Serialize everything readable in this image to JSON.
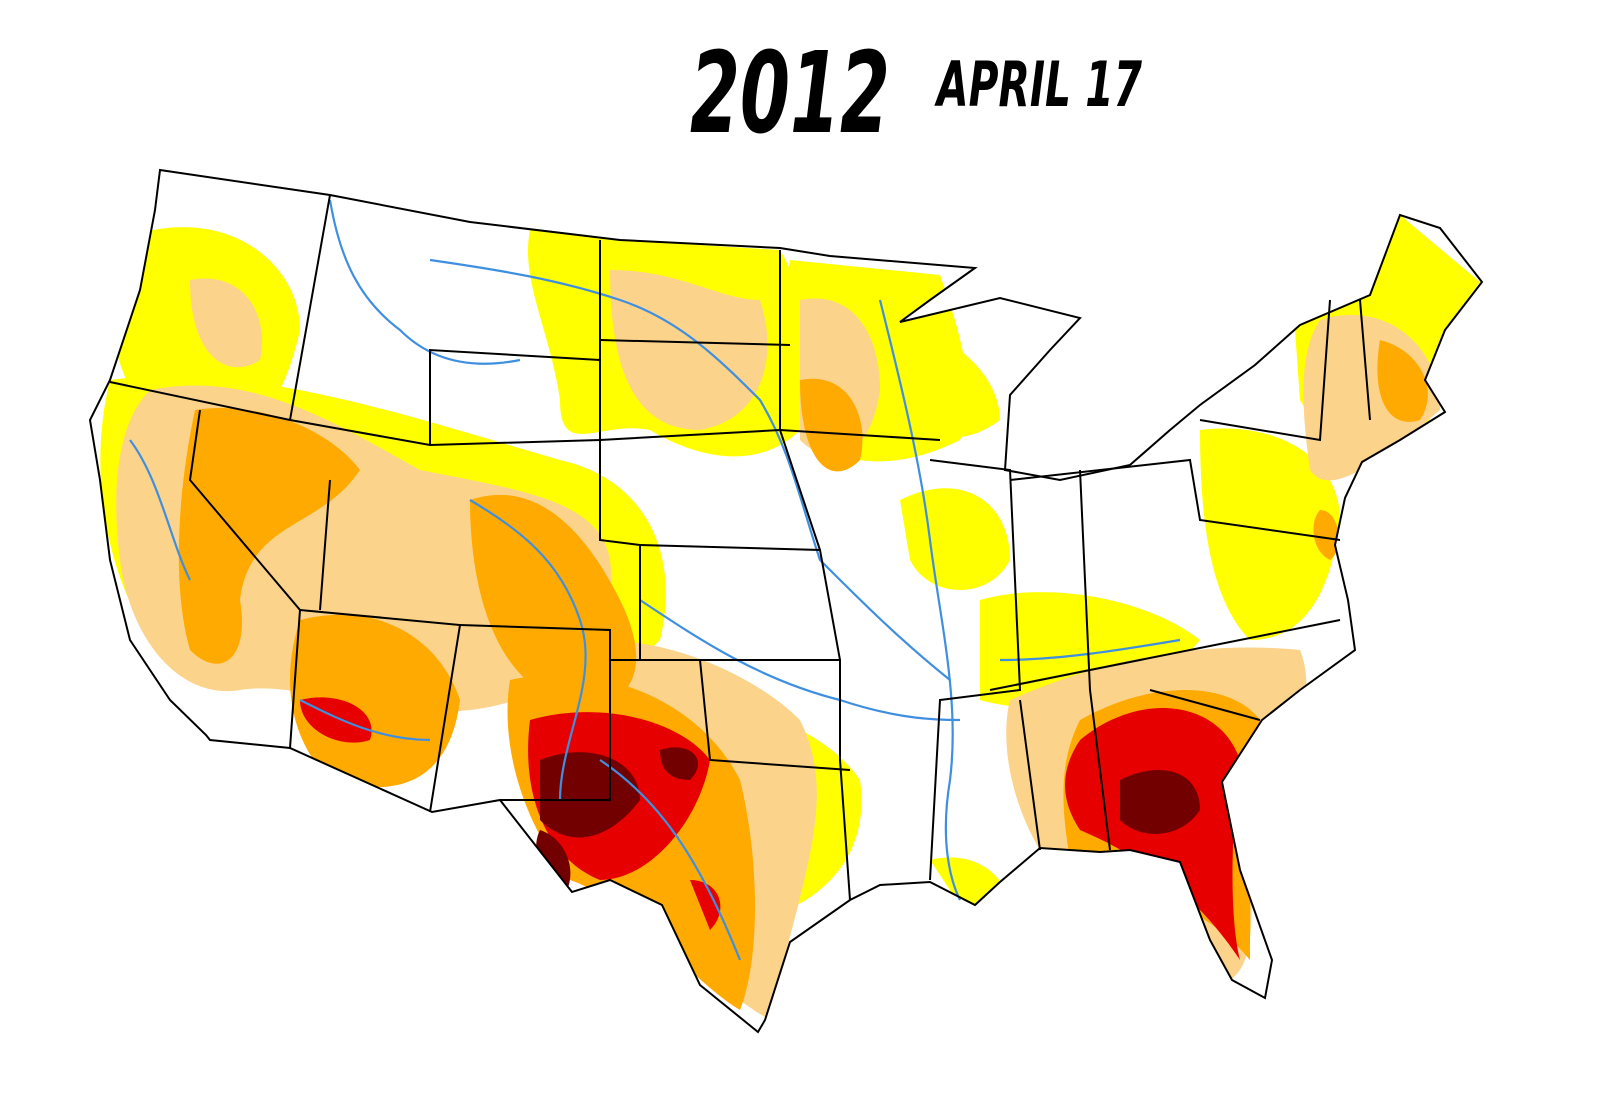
{
  "header": {
    "year": "2012",
    "date": "APRIL 17"
  }
}
